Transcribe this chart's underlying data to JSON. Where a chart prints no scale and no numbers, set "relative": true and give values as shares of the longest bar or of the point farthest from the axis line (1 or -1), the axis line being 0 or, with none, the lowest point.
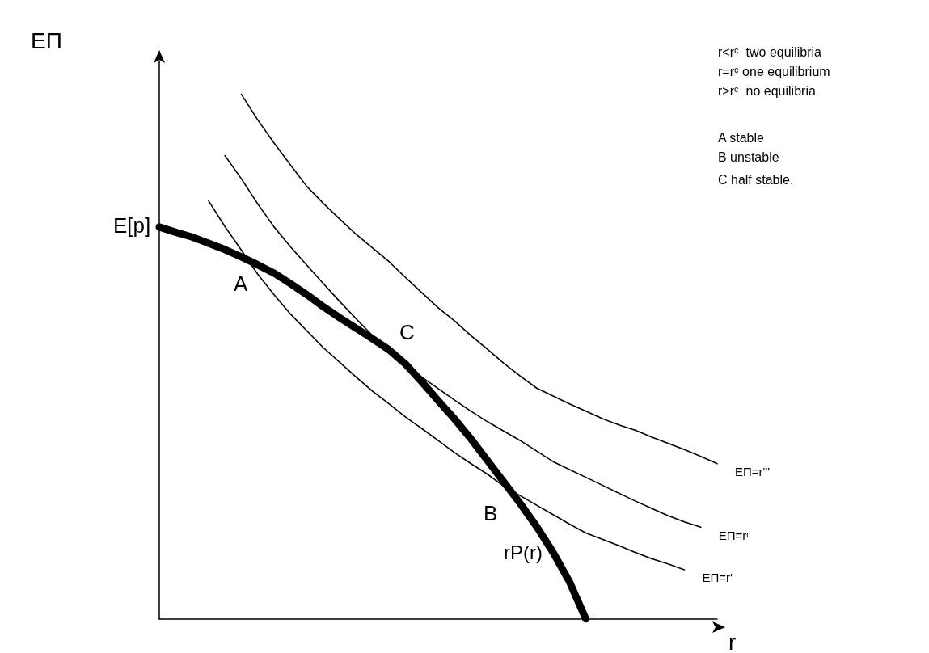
{
  "chart_data": {
    "type": "line",
    "relative": true,
    "xlabel": "r",
    "ylabel": "EΠ",
    "legend": false,
    "grid": false,
    "marker": "none",
    "line_style": "solid",
    "categories": [
      null,
      null,
      null,
      null,
      null,
      null,
      null,
      null,
      null,
      null,
      null,
      null,
      null,
      null,
      null,
      null,
      null,
      null,
      null,
      null,
      null,
      null,
      null,
      null,
      null,
      null,
      null,
      null,
      null,
      null,
      null,
      null,
      null,
      null,
      null
    ],
    "series": [
      {
        "name": "rP(r)",
        "color": "#000000",
        "values": [
          0.747,
          0.737,
          0.728,
          0.716,
          0.704,
          0.69,
          0.675,
          0.659,
          0.639,
          0.618,
          0.595,
          0.574,
          0.554,
          0.534,
          0.513,
          0.486,
          0.452,
          0.416,
          0.381,
          0.343,
          0.302,
          0.261,
          0.22,
          0.176,
          0.127,
          0.071,
          0,
          null,
          null,
          null,
          null,
          null,
          null,
          null,
          null
        ]
      },
      {
        "name": "EΠ=r'",
        "color": "#000000",
        "values": [
          null,
          null,
          null,
          0.797,
          0.748,
          0.703,
          0.657,
          0.618,
          0.581,
          0.549,
          0.517,
          0.489,
          0.461,
          0.434,
          0.41,
          0.385,
          0.363,
          0.34,
          0.317,
          0.296,
          0.276,
          0.253,
          0.235,
          0.217,
          0.199,
          0.181,
          0.164,
          0.152,
          0.14,
          0.127,
          0.115,
          0.105,
          0.094,
          null,
          null
        ]
      },
      {
        "name": "EΠ=rᶜ",
        "color": "#000000",
        "values": [
          null,
          null,
          null,
          null,
          0.883,
          0.839,
          0.791,
          0.747,
          0.709,
          0.674,
          0.639,
          0.605,
          0.572,
          0.54,
          0.514,
          0.487,
          0.461,
          0.439,
          0.417,
          0.396,
          0.376,
          0.358,
          0.34,
          0.32,
          0.3,
          0.285,
          0.27,
          0.255,
          0.24,
          0.225,
          0.211,
          0.197,
          0.185,
          0.175,
          null
        ]
      },
      {
        "name": "EΠ=r'''",
        "color": "#000000",
        "values": [
          null,
          null,
          null,
          null,
          null,
          1,
          0.951,
          0.907,
          0.865,
          0.824,
          0.792,
          0.762,
          0.733,
          0.707,
          0.681,
          0.651,
          0.622,
          0.593,
          0.568,
          0.54,
          0.514,
          0.487,
          0.463,
          0.44,
          0.425,
          0.41,
          0.396,
          0.382,
          0.37,
          0.36,
          0.347,
          0.335,
          0.323,
          0.31,
          0.296
        ]
      }
    ],
    "annotations": [
      "E[p]",
      "A",
      "B",
      "C",
      "r<rᶜ  two equilibria",
      "r=rᶜ one equilibrium",
      "r>rᶜ  no equilibria",
      "A stable",
      "B unstable",
      "C half stable."
    ]
  }
}
